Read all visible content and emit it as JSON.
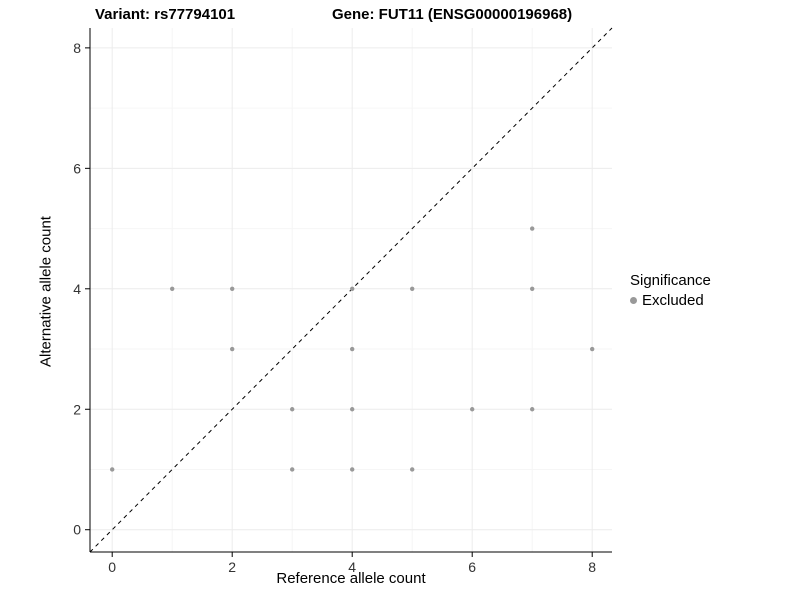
{
  "chart_data": {
    "type": "scatter",
    "title_left": "Variant: rs77794101",
    "title_right": "Gene: FUT11 (ENSG00000196968)",
    "xlabel": "Reference allele count",
    "ylabel": "Alternative allele count",
    "xlim": [
      -0.37,
      8.33
    ],
    "ylim": [
      -0.37,
      8.33
    ],
    "x_ticks": [
      0,
      2,
      4,
      6,
      8
    ],
    "y_ticks": [
      0,
      2,
      4,
      6,
      8
    ],
    "minor_ticks": [
      1,
      3,
      5,
      7
    ],
    "grid": true,
    "identity_line": {
      "style": "dashed",
      "equation": "y = x",
      "color": "#000000"
    },
    "legend": {
      "position": "right",
      "title": "Significance",
      "entries": [
        {
          "label": "Excluded",
          "color": "#999999",
          "marker": "circle"
        }
      ]
    },
    "series": [
      {
        "name": "Excluded",
        "color": "#999999",
        "points": [
          [
            0,
            1
          ],
          [
            1,
            4
          ],
          [
            2,
            3
          ],
          [
            2,
            4
          ],
          [
            3,
            1
          ],
          [
            3,
            2
          ],
          [
            4,
            1
          ],
          [
            4,
            2
          ],
          [
            4,
            3
          ],
          [
            4,
            4
          ],
          [
            5,
            1
          ],
          [
            5,
            4
          ],
          [
            6,
            2
          ],
          [
            7,
            2
          ],
          [
            7,
            4
          ],
          [
            7,
            5
          ],
          [
            8,
            3
          ]
        ]
      }
    ],
    "colors": {
      "point": "#999999",
      "grid_major": "#ececec",
      "grid_minor": "#f6f6f6",
      "axis": "#000000"
    }
  }
}
